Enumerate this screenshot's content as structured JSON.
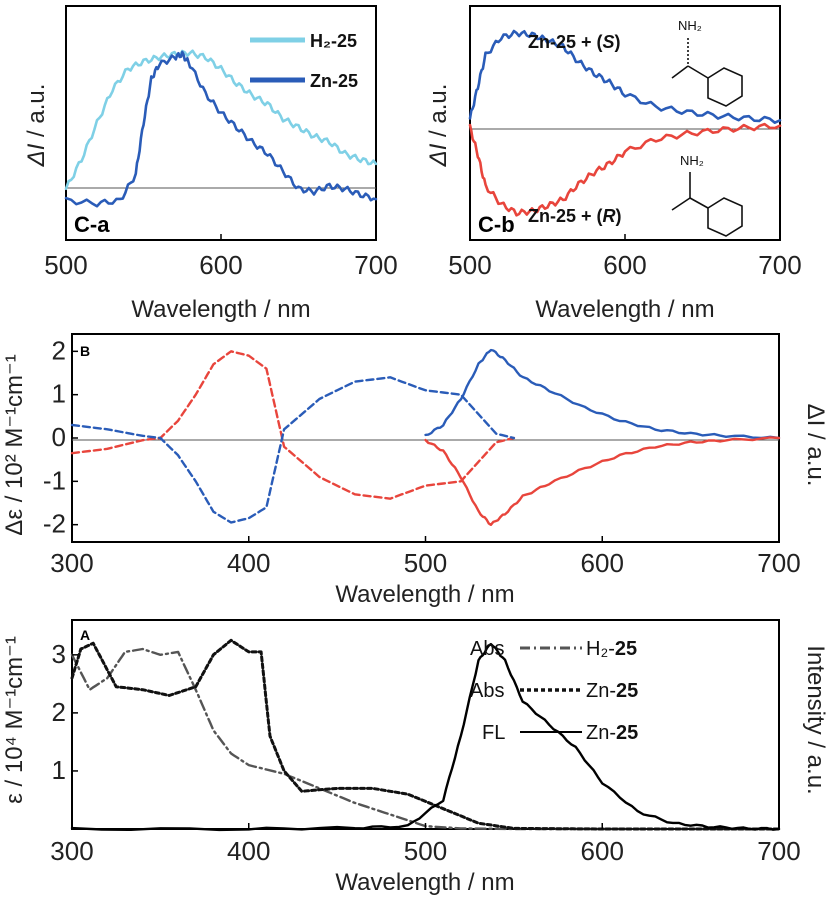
{
  "chart_data": [
    {
      "panel": "C-a",
      "type": "line",
      "xlabel": "Wavelength / nm",
      "ylabel": "ΔI / a.u.",
      "xlim": [
        500,
        700
      ],
      "ylim": [
        -0.25,
        1.35
      ],
      "xticks": [
        "500",
        "600",
        "700"
      ],
      "series": [
        {
          "name": "H₂-25",
          "label_main": "H₂-",
          "label_bold": "25",
          "color": "#7fd0e6",
          "x": [
            500,
            510,
            520,
            530,
            540,
            550,
            560,
            570,
            580,
            590,
            600,
            610,
            620,
            630,
            640,
            650,
            660,
            670,
            680,
            690,
            700
          ],
          "y": [
            0.1,
            0.3,
            0.55,
            0.78,
            0.92,
            0.97,
            1.0,
            1.02,
            1.03,
            1.0,
            0.92,
            0.82,
            0.74,
            0.68,
            0.58,
            0.52,
            0.46,
            0.42,
            0.34,
            0.3,
            0.27
          ]
        },
        {
          "name": "Zn-25",
          "label_main": "Zn-",
          "label_bold": "25",
          "color": "#2a5cb8",
          "x": [
            500,
            520,
            535,
            545,
            550,
            555,
            560,
            570,
            575,
            580,
            590,
            600,
            610,
            620,
            630,
            640,
            650,
            660,
            670,
            680,
            690,
            700
          ],
          "y": [
            0.02,
            0.0,
            0.02,
            0.2,
            0.55,
            0.85,
            0.95,
            1.0,
            1.02,
            0.95,
            0.75,
            0.62,
            0.52,
            0.42,
            0.34,
            0.22,
            0.1,
            0.08,
            0.12,
            0.1,
            0.06,
            0.03
          ]
        }
      ]
    },
    {
      "panel": "C-b",
      "type": "line",
      "xlabel": "Wavelength / nm",
      "ylabel": "ΔI / a.u.",
      "xlim": [
        500,
        700
      ],
      "ylim": [
        -1.3,
        1.3
      ],
      "xticks": [
        "500",
        "600",
        "700"
      ],
      "series": [
        {
          "name": "Zn-25 + (S)",
          "color": "#2a5cb8",
          "x": [
            500,
            505,
            510,
            520,
            530,
            540,
            550,
            560,
            570,
            580,
            590,
            600,
            620,
            640,
            660,
            680,
            700
          ],
          "y": [
            0.05,
            0.4,
            0.75,
            0.95,
            1.0,
            0.98,
            0.92,
            0.85,
            0.68,
            0.55,
            0.45,
            0.32,
            0.18,
            0.12,
            0.08,
            0.05,
            0.03
          ]
        },
        {
          "name": "Zn-25 + (R)",
          "color": "#e8453c",
          "x": [
            500,
            505,
            510,
            520,
            530,
            540,
            550,
            560,
            570,
            580,
            590,
            600,
            620,
            640,
            660,
            680,
            700
          ],
          "y": [
            -0.05,
            -0.35,
            -0.7,
            -0.9,
            -1.0,
            -0.98,
            -0.92,
            -0.85,
            -0.68,
            -0.55,
            -0.45,
            -0.32,
            -0.18,
            -0.12,
            -0.08,
            -0.05,
            -0.03
          ]
        }
      ],
      "annotations": {
        "s_prefix": "Zn-",
        "s_num": "25",
        "s_mid": " + (",
        "s_chir": "S",
        "s_end": ")",
        "r_prefix": "Zn-",
        "r_num": "25",
        "r_mid": " + (",
        "r_chir": "R",
        "r_end": ")",
        "nh2": "NH₂"
      }
    },
    {
      "panel": "B",
      "type": "line",
      "xlabel": "Wavelength / nm",
      "ylabel_left": "Δε / 10² M⁻¹cm⁻¹",
      "ylabel_right": "ΔI / a.u.",
      "xlim": [
        300,
        700
      ],
      "ylim": [
        -2.4,
        2.4
      ],
      "xticks": [
        "300",
        "400",
        "500",
        "600",
        "700"
      ],
      "yticks": [
        "-2",
        "-1",
        "0",
        "1",
        "2"
      ],
      "series": [
        {
          "name": "CD (dashed, red)",
          "style": "dashed",
          "color": "#e8453c",
          "x": [
            300,
            320,
            340,
            350,
            360,
            370,
            380,
            390,
            400,
            410,
            420,
            440,
            460,
            480,
            500,
            520,
            540,
            550
          ],
          "y": [
            -0.35,
            -0.25,
            -0.05,
            0.0,
            0.4,
            1.0,
            1.7,
            2.0,
            1.9,
            1.6,
            -0.2,
            -0.9,
            -1.3,
            -1.4,
            -1.1,
            -1.0,
            -0.1,
            0.0
          ]
        },
        {
          "name": "CD (dashed, blue)",
          "style": "dashed",
          "color": "#2a5cb8",
          "x": [
            300,
            320,
            340,
            350,
            360,
            370,
            380,
            390,
            400,
            410,
            420,
            440,
            460,
            480,
            500,
            520,
            540,
            550
          ],
          "y": [
            0.3,
            0.2,
            0.05,
            0.0,
            -0.4,
            -1.0,
            -1.7,
            -1.95,
            -1.85,
            -1.6,
            0.2,
            0.9,
            1.3,
            1.4,
            1.1,
            1.0,
            0.1,
            0.0
          ]
        },
        {
          "name": "CPL (solid, blue)",
          "style": "solid",
          "color": "#2a5cb8",
          "x": [
            500,
            510,
            520,
            530,
            537,
            545,
            555,
            570,
            590,
            610,
            630,
            650,
            670,
            700
          ],
          "y": [
            0.05,
            0.3,
            0.9,
            1.7,
            2.05,
            1.8,
            1.4,
            1.1,
            0.7,
            0.4,
            0.2,
            0.1,
            0.05,
            0.0
          ]
        },
        {
          "name": "CPL (solid, red)",
          "style": "solid",
          "color": "#e8453c",
          "x": [
            500,
            510,
            520,
            530,
            537,
            545,
            555,
            570,
            590,
            610,
            630,
            650,
            670,
            700
          ],
          "y": [
            -0.05,
            -0.3,
            -0.9,
            -1.7,
            -2.0,
            -1.75,
            -1.35,
            -1.05,
            -0.7,
            -0.4,
            -0.2,
            -0.1,
            -0.05,
            0.0
          ]
        }
      ]
    },
    {
      "panel": "A",
      "type": "line",
      "xlabel": "Wavelength / nm",
      "ylabel_left": "ε / 10⁴ M⁻¹cm⁻¹",
      "ylabel_right": "Intensity / a.u.",
      "xlim": [
        300,
        700
      ],
      "ylim": [
        0,
        3.6
      ],
      "xticks": [
        "300",
        "400",
        "500",
        "600",
        "700"
      ],
      "yticks": [
        "1",
        "2",
        "3"
      ],
      "series": [
        {
          "name": "Abs H₂-25",
          "legend_kind": "Abs",
          "legend_main": "H₂-",
          "legend_bold": "25",
          "style": "dashdot",
          "color": "#555555",
          "x": [
            300,
            310,
            320,
            330,
            340,
            350,
            360,
            370,
            380,
            390,
            400,
            420,
            440,
            460,
            480,
            500,
            520,
            550,
            600,
            700
          ],
          "y": [
            3.0,
            2.4,
            2.6,
            3.05,
            3.1,
            3.0,
            3.05,
            2.4,
            1.7,
            1.3,
            1.1,
            0.95,
            0.7,
            0.45,
            0.25,
            0.05,
            0.01,
            0.0,
            0.0,
            0.0
          ]
        },
        {
          "name": "Abs Zn-25",
          "legend_kind": "Abs",
          "legend_main": "Zn-",
          "legend_bold": "25",
          "style": "dotted",
          "color": "#111111",
          "x": [
            300,
            305,
            312,
            325,
            340,
            355,
            370,
            380,
            390,
            400,
            407,
            412,
            420,
            430,
            450,
            470,
            490,
            510,
            530,
            550,
            600,
            700
          ],
          "y": [
            2.6,
            3.1,
            3.2,
            2.45,
            2.4,
            2.3,
            2.45,
            3.0,
            3.25,
            3.05,
            3.05,
            1.6,
            1.0,
            0.65,
            0.7,
            0.7,
            0.6,
            0.35,
            0.1,
            0.01,
            0.0,
            0.0
          ]
        },
        {
          "name": "FL Zn-25",
          "legend_kind": "FL",
          "legend_main": "Zn-",
          "legend_bold": "25",
          "style": "solid",
          "color": "#000000",
          "x": [
            300,
            400,
            460,
            490,
            510,
            520,
            530,
            537,
            545,
            555,
            570,
            585,
            600,
            620,
            640,
            660,
            680,
            700
          ],
          "y": [
            0.0,
            0.0,
            0.02,
            0.05,
            0.5,
            1.6,
            2.9,
            3.2,
            2.9,
            2.2,
            1.8,
            1.4,
            0.8,
            0.3,
            0.1,
            0.04,
            0.01,
            0.0
          ]
        }
      ]
    }
  ]
}
